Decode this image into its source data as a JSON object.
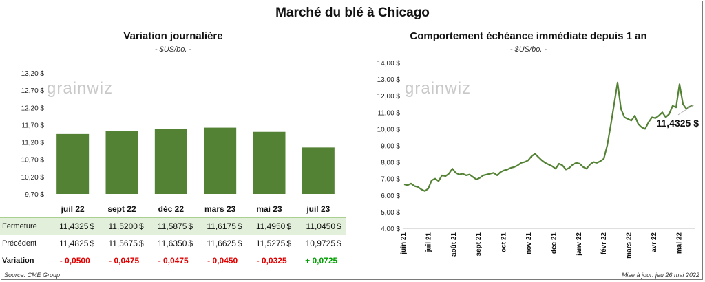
{
  "title": "Marché du blé à Chicago",
  "left": {
    "subtitle": "Variation  journalière",
    "unit": "- $US/bo. -",
    "watermark": "grainwiz",
    "y_ticks": [
      "13,20 $",
      "12,70 $",
      "12,20 $",
      "11,70 $",
      "11,20 $",
      "10,70 $",
      "10,20 $",
      "9,70 $"
    ],
    "rows": {
      "close_label": "Fermeture",
      "prev_label": "Précédent",
      "var_label": "Variation",
      "currency": "$"
    }
  },
  "right": {
    "subtitle": "Comportement  échéance immédiate depuis 1 an",
    "unit": "- $US/bo. -",
    "watermark": "grainwiz",
    "last_label": "11,4325 $"
  },
  "footer": {
    "source": "Source: CME Group",
    "updated": "Mise à jour: jeu 26 mai 2022"
  },
  "chart_data": [
    {
      "type": "bar",
      "title": "Variation  journalière",
      "categories": [
        "juil 22",
        "sept 22",
        "déc 22",
        "mars 23",
        "mai 23",
        "juil 23"
      ],
      "values": [
        11.4325,
        11.52,
        11.5875,
        11.6175,
        11.495,
        11.045
      ],
      "close_text": [
        "11,4325",
        "11,5200",
        "11,5875",
        "11,6175",
        "11,4950",
        "11,0450"
      ],
      "prev_text": [
        "11,4825",
        "11,5675",
        "11,6350",
        "11,6625",
        "11,5275",
        "10,9725"
      ],
      "change_text": [
        "- 0,0500",
        "- 0,0475",
        "- 0,0475",
        "- 0,0450",
        "- 0,0325",
        "+ 0,0725"
      ],
      "change_sign": [
        "neg",
        "neg",
        "neg",
        "neg",
        "neg",
        "pos"
      ],
      "ylim": [
        9.7,
        13.2
      ],
      "grid": false,
      "color": "#548235"
    },
    {
      "type": "line",
      "title": "Comportement  échéance immédiate depuis 1 an",
      "x_labels": [
        "juin 21",
        "juil 21",
        "août 21",
        "sept 21",
        "oct 21",
        "nov 21",
        "déc 21",
        "janv 22",
        "févr 22",
        "mars 22",
        "avr 22",
        "mai 22"
      ],
      "y_ticks": [
        "14,00 $",
        "13,00 $",
        "12,00 $",
        "11,00 $",
        "10,00 $",
        "9,00 $",
        "8,00 $",
        "7,00 $",
        "6,00 $",
        "5,00 $",
        "4,00 $"
      ],
      "ylim": [
        4,
        14
      ],
      "grid": false,
      "color": "#548235",
      "series": [
        {
          "values": [
            6.65,
            6.6,
            6.7,
            6.55,
            6.5,
            6.35,
            6.25,
            6.4,
            6.9,
            7.0,
            6.85,
            7.2,
            7.15,
            7.3,
            7.6,
            7.35,
            7.25,
            7.3,
            7.2,
            7.25,
            7.1,
            6.95,
            7.05,
            7.2,
            7.25,
            7.3,
            7.35,
            7.2,
            7.4,
            7.5,
            7.55,
            7.65,
            7.7,
            7.8,
            7.95,
            8.0,
            8.1,
            8.35,
            8.5,
            8.3,
            8.1,
            7.95,
            7.85,
            7.75,
            7.6,
            7.9,
            7.8,
            7.55,
            7.65,
            7.85,
            7.95,
            7.9,
            7.7,
            7.6,
            7.85,
            8.0,
            7.95,
            8.05,
            8.2,
            9.0,
            10.2,
            11.5,
            12.8,
            11.2,
            10.7,
            10.6,
            10.5,
            10.8,
            10.3,
            10.1,
            10.0,
            10.4,
            10.7,
            10.65,
            10.8,
            11.0,
            10.7,
            10.9,
            11.4,
            11.3,
            12.7,
            11.5,
            11.2,
            11.35,
            11.4325
          ]
        }
      ],
      "last_value": 11.4325
    }
  ]
}
